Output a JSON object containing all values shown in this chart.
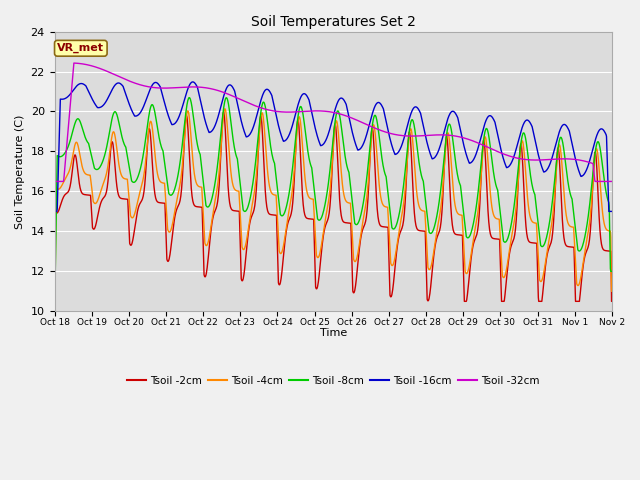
{
  "title": "Soil Temperatures Set 2",
  "xlabel": "Time",
  "ylabel": "Soil Temperature (C)",
  "ylim": [
    10,
    24
  ],
  "yticks": [
    10,
    12,
    14,
    16,
    18,
    20,
    22,
    24
  ],
  "annotation_text": "VR_met",
  "fig_facecolor": "#f0f0f0",
  "ax_facecolor": "#dcdcdc",
  "line_colors": {
    "2cm": "#cc0000",
    "4cm": "#ff8800",
    "8cm": "#00cc00",
    "16cm": "#0000cc",
    "32cm": "#cc00cc"
  },
  "legend_labels": [
    "Tsoil -2cm",
    "Tsoil -4cm",
    "Tsoil -8cm",
    "Tsoil -16cm",
    "Tsoil -32cm"
  ],
  "x_tick_labels": [
    "Oct 18",
    "Oct 19",
    "Oct 20",
    "Oct 21",
    "Oct 22",
    "Oct 23",
    "Oct 24",
    "Oct 25",
    "Oct 26",
    "Oct 27",
    "Oct 28",
    "Oct 29",
    "Oct 30",
    "Oct 31",
    "Nov 1",
    "Nov 2"
  ],
  "num_points": 1440
}
